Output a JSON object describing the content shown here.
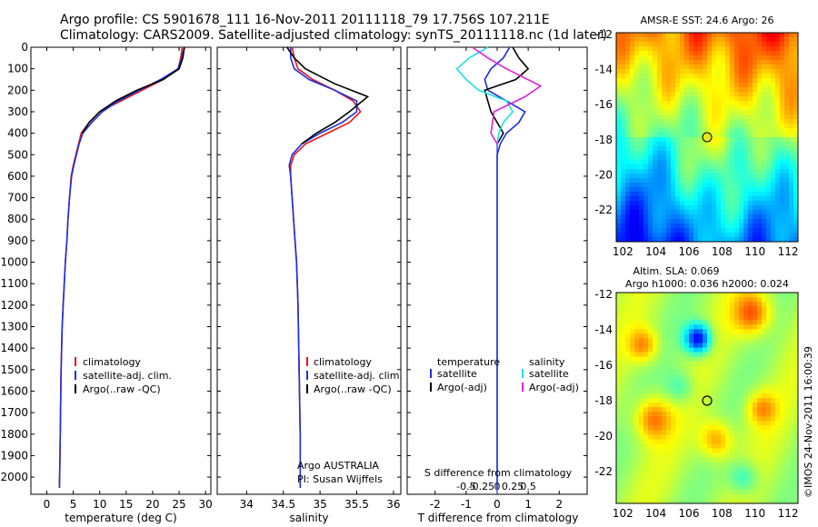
{
  "header": {
    "title_line1": "Argo profile: CS 5901678_111 16-Nov-2011 20111118_79 17.756S 107.211E",
    "title_line2": "Climatology: CARS2009. Satellite-adjusted climatology: synTS_20111118.nc (1d later)"
  },
  "colors": {
    "climatology": "#e8141c",
    "satellite": "#1c2fe0",
    "argo": "#000000",
    "sat_salinity": "#20e0e8",
    "argo_salinity": "#e020d8"
  },
  "depth_ticks": [
    "0",
    "100",
    "200",
    "300",
    "400",
    "500",
    "600",
    "700",
    "800",
    "900",
    "1000",
    "1100",
    "1200",
    "1300",
    "1400",
    "1500",
    "1600",
    "1700",
    "1800",
    "1900",
    "2000"
  ],
  "panel1": {
    "xlabel": "temperature (deg C)",
    "xticks": [
      "0",
      "5",
      "10",
      "15",
      "20",
      "25",
      "30"
    ],
    "legend": [
      "climatology",
      "satellite-adj. clim.",
      "Argo(..raw -QC)"
    ]
  },
  "panel2": {
    "xlabel": "salinity",
    "xticks": [
      "34",
      "34.5",
      "35",
      "35.5",
      "36"
    ],
    "legend": [
      "climatology",
      "satellite-adj. clim.",
      "Argo(..raw -QC)"
    ],
    "footer1": "Argo AUSTRALIA",
    "footer2": "PI: Susan Wijffels"
  },
  "panel3": {
    "xlabel": "T difference from climatology",
    "xticks": [
      "-2",
      "-1",
      "0",
      "1",
      "2"
    ],
    "sticks": [
      "-0.5",
      "-0.25",
      "0",
      "0.25",
      "0.5"
    ],
    "slabel": "S difference from climatology",
    "leg_t_head": "temperature",
    "leg_s_head": "salinity",
    "leg_t1": "satellite",
    "leg_t2": "Argo(-adj)",
    "leg_s1": "satellite",
    "leg_s2": "Argo(-adj)"
  },
  "map1": {
    "title": "AMSR-E SST: 24.6  Argo: 26",
    "yticks": [
      "-12",
      "-14",
      "-16",
      "-18",
      "-20",
      "-22"
    ],
    "xticks": [
      "102",
      "104",
      "106",
      "108",
      "110",
      "112"
    ]
  },
  "map2": {
    "title1": "Altim. SLA: 0.069",
    "title2": "Argo h1000: 0.036 h2000: 0.024",
    "yticks": [
      "-12",
      "-14",
      "-16",
      "-18",
      "-20",
      "-22"
    ],
    "xticks": [
      "102",
      "104",
      "106",
      "108",
      "110",
      "112"
    ]
  },
  "credit": "©IMOS 24-Nov-2011 16:00:39",
  "chart_data": [
    {
      "type": "line",
      "xlabel": "temperature (deg C)",
      "ylabel": "",
      "xlim": [
        -3,
        31
      ],
      "ylim": [
        2080,
        0
      ],
      "series": [
        {
          "name": "climatology",
          "x": [
            25.6,
            25.3,
            24.8,
            22,
            18,
            14,
            10,
            8,
            6.5,
            6,
            5.5,
            5,
            4.6,
            4.3,
            4,
            3.8,
            3.5,
            3.3,
            3.1,
            2.9,
            2.8,
            2.7,
            2.6,
            2.5,
            2.4
          ],
          "y": [
            0,
            50,
            100,
            150,
            200,
            250,
            300,
            350,
            400,
            450,
            500,
            550,
            600,
            700,
            800,
            900,
            1000,
            1100,
            1200,
            1300,
            1400,
            1500,
            1700,
            1900,
            2050
          ]
        },
        {
          "name": "satellite-adj. clim.",
          "x": [
            26,
            25.5,
            24.8,
            21.5,
            17.5,
            13.5,
            10.5,
            8.5,
            6.8,
            6.1,
            5.6,
            5.1,
            4.7,
            4.3,
            4,
            3.8,
            3.5,
            3.3,
            3.1,
            2.9,
            2.8,
            2.7,
            2.6,
            2.5,
            2.4
          ],
          "y": [
            0,
            50,
            100,
            150,
            200,
            250,
            300,
            350,
            400,
            450,
            500,
            550,
            600,
            700,
            800,
            900,
            1000,
            1100,
            1200,
            1300,
            1400,
            1500,
            1700,
            1900,
            2050
          ]
        },
        {
          "name": "Argo(..raw -QC)",
          "x": [
            26,
            25.7,
            25,
            22,
            17,
            13,
            10,
            8,
            6.7
          ],
          "y": [
            0,
            50,
            100,
            150,
            200,
            250,
            300,
            350,
            400
          ]
        }
      ]
    },
    {
      "type": "line",
      "xlabel": "salinity",
      "xlim": [
        33.6,
        36.1
      ],
      "ylim": [
        2080,
        0
      ],
      "series": [
        {
          "name": "climatology",
          "x": [
            34.62,
            34.65,
            34.7,
            34.9,
            35.2,
            35.45,
            35.55,
            35.4,
            35.1,
            34.8,
            34.65,
            34.6,
            34.6,
            34.62,
            34.64,
            34.66,
            34.68,
            34.7,
            34.71,
            34.72,
            34.73,
            34.73
          ],
          "y": [
            0,
            50,
            100,
            150,
            200,
            250,
            300,
            350,
            400,
            450,
            500,
            550,
            600,
            700,
            800,
            900,
            1000,
            1200,
            1400,
            1600,
            1800,
            2050
          ]
        },
        {
          "name": "satellite-adj. clim.",
          "x": [
            34.6,
            34.6,
            34.65,
            34.85,
            35.2,
            35.5,
            35.5,
            35.3,
            35,
            34.75,
            34.62,
            34.58,
            34.6,
            34.62,
            34.64,
            34.66,
            34.68,
            34.7,
            34.71,
            34.72,
            34.73,
            34.73
          ],
          "y": [
            0,
            50,
            100,
            150,
            200,
            250,
            300,
            350,
            400,
            450,
            500,
            550,
            600,
            700,
            800,
            900,
            1000,
            1200,
            1400,
            1600,
            1800,
            2050
          ]
        },
        {
          "name": "Argo(..raw -QC)",
          "x": [
            34.55,
            34.65,
            34.8,
            35.2,
            35.65,
            35.4,
            35.2,
            34.95,
            34.75
          ],
          "y": [
            0,
            50,
            100,
            170,
            230,
            300,
            350,
            400,
            450
          ]
        }
      ]
    },
    {
      "type": "line",
      "xlabel": "T difference from climatology",
      "xlim": [
        -2.9,
        2.9
      ],
      "ylim": [
        2080,
        0
      ],
      "series": [
        {
          "name": "temperature satellite",
          "x": [
            0.4,
            0.2,
            -0.2,
            -0.4,
            -0.3,
            0.3,
            0.9,
            0.7,
            0.3,
            0.1,
            0,
            0,
            0,
            0,
            0
          ],
          "y": [
            0,
            50,
            100,
            150,
            200,
            250,
            300,
            350,
            400,
            450,
            500,
            600,
            800,
            1200,
            2050
          ]
        },
        {
          "name": "temperature Argo(-adj)",
          "x": [
            0.5,
            0.7,
            1,
            0.6,
            -0.4,
            -0.2,
            0.2,
            0
          ],
          "y": [
            0,
            50,
            100,
            150,
            200,
            300,
            400,
            450
          ]
        },
        {
          "name": "salinity satellite",
          "x": [
            -0.3,
            -0.9,
            -1.3,
            -1,
            -0.6,
            0.3,
            0.5,
            0.2,
            0.05,
            0
          ],
          "y": [
            0,
            50,
            100,
            150,
            200,
            250,
            300,
            350,
            400,
            450
          ]
        },
        {
          "name": "salinity Argo(-adj)",
          "x": [
            -0.8,
            -0.3,
            0.3,
            1.4,
            0.9,
            -0.1,
            -0.2,
            0
          ],
          "y": [
            0,
            50,
            100,
            180,
            230,
            300,
            400,
            450
          ]
        }
      ]
    }
  ]
}
